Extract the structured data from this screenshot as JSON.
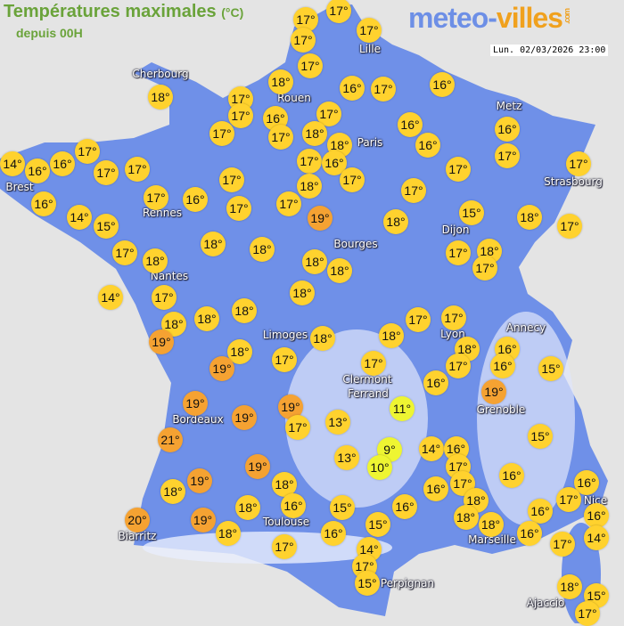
{
  "header": {
    "title": "Températures maximales",
    "unit": "(°C)",
    "subtitle": "depuis 00H",
    "datetime": "Lun. 02/03/2026 23:00"
  },
  "logo": {
    "part1": "meteo-",
    "part2": "villes",
    "suffix": ".com"
  },
  "colors": {
    "map_land": "#6f90e8",
    "background": "#e4e4e4",
    "warm": "#ffd22e",
    "hot": "#f5a232",
    "cool": "#eef532"
  },
  "cities": [
    "Lille",
    "Cherbourg",
    "Rouen",
    "Paris",
    "Metz",
    "Brest",
    "Rennes",
    "Strasbourg",
    "Dijon",
    "Bourges",
    "Nantes",
    "Limoges",
    "Lyon",
    "Annecy",
    "Clermont",
    "Ferrand",
    "Grenoble",
    "Bordeaux",
    "Toulouse",
    "Biarritz",
    "Marseille",
    "Nice",
    "Perpignan",
    "Ajaccio"
  ],
  "temperatures": [
    "17°",
    "17°",
    "17°",
    "17°",
    "17°",
    "18°",
    "18°",
    "17°",
    "17°",
    "16°",
    "16°",
    "17°",
    "16°",
    "17°",
    "17°",
    "17°",
    "18°",
    "18°",
    "16°",
    "16°",
    "16°",
    "17°",
    "14°",
    "16°",
    "16°",
    "17°",
    "17°",
    "17°",
    "17°",
    "16°",
    "17°",
    "17°",
    "17°",
    "16°",
    "14°",
    "15°",
    "17°",
    "16°",
    "17°",
    "17°",
    "17°",
    "18°",
    "19°",
    "17°",
    "18°",
    "15°",
    "18°",
    "17°",
    "17°",
    "18°",
    "18°",
    "18°",
    "18°",
    "18°",
    "17°",
    "18°",
    "17°",
    "14°",
    "17°",
    "18°",
    "19°",
    "18°",
    "18°",
    "18°",
    "18°",
    "17°",
    "18°",
    "17°",
    "18°",
    "17°",
    "16°",
    "16°",
    "15°",
    "18°",
    "19°",
    "17°",
    "17°",
    "16°",
    "19°",
    "19°",
    "19°",
    "19°",
    "17°",
    "13°",
    "11°",
    "21°",
    "9°",
    "13°",
    "10°",
    "14°",
    "16°",
    "15°",
    "19°",
    "19°",
    "18°",
    "18°",
    "17°",
    "16°",
    "17°",
    "16°",
    "16°",
    "17°",
    "16°",
    "20°",
    "19°",
    "18°",
    "16°",
    "15°",
    "16°",
    "18°",
    "18°",
    "18°",
    "16°",
    "14°",
    "18°",
    "16°",
    "15°",
    "16°",
    "17°",
    "14°",
    "17°",
    "17°",
    "15°",
    "18°",
    "15°",
    "17°"
  ]
}
